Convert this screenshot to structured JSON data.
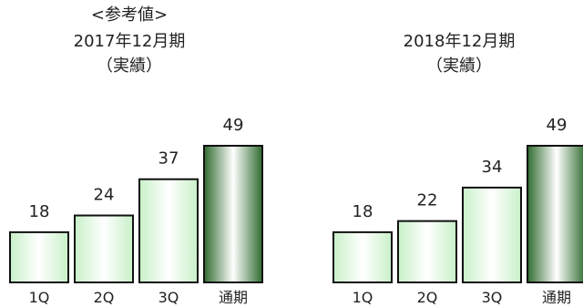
{
  "chart_data": [
    {
      "type": "bar",
      "title_lines": [
        "<参考値>",
        "2017年12月期",
        "（実績）"
      ],
      "categories": [
        "1Q",
        "2Q",
        "3Q",
        "通期"
      ],
      "values": [
        18,
        24,
        37,
        49
      ],
      "ylim": [
        0,
        49
      ],
      "grid": false,
      "bar_style": [
        "light-green-gradient",
        "light-green-gradient",
        "light-green-gradient",
        "dark-green-gradient"
      ]
    },
    {
      "type": "bar",
      "title_lines": [
        "2018年12月期",
        "（実績）"
      ],
      "categories": [
        "1Q",
        "2Q",
        "3Q",
        "通期"
      ],
      "values": [
        18,
        22,
        34,
        49
      ],
      "ylim": [
        0,
        49
      ],
      "grid": false,
      "bar_style": [
        "light-green-gradient",
        "light-green-gradient",
        "light-green-gradient",
        "dark-green-gradient"
      ]
    }
  ],
  "colors": {
    "bar_outline": "#111111",
    "light_bar_edge": "#c8f0c8",
    "light_bar_center": "#ffffff",
    "dark_bar_edge": "#2f6b2f",
    "dark_bar_center": "#ffffff"
  }
}
